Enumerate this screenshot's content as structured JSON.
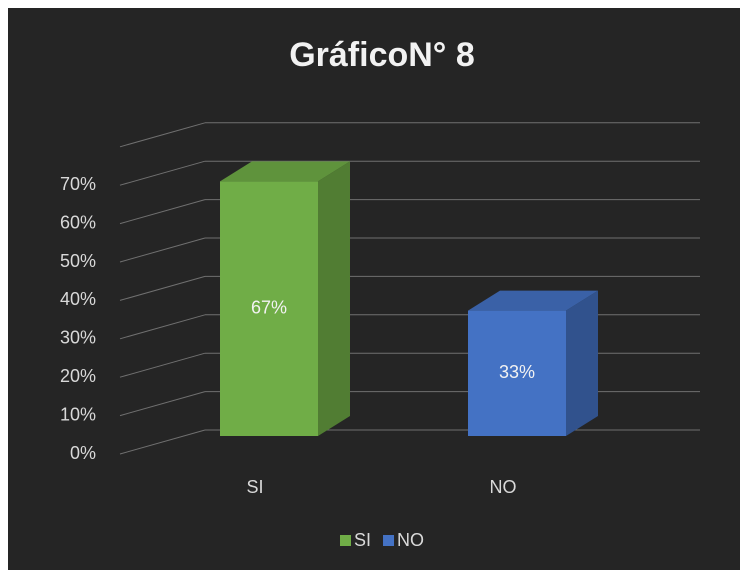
{
  "chart_data": {
    "type": "bar3d",
    "title": "GráficoN° 8",
    "categories": [
      "SI",
      "NO"
    ],
    "values": [
      67,
      33
    ],
    "value_labels": [
      "67%",
      "33%"
    ],
    "colors": [
      "#70ad47",
      "#4472c4"
    ],
    "ylim": [
      0,
      80
    ],
    "yticks": [
      {
        "value": 0,
        "label": "0%"
      },
      {
        "value": 10,
        "label": "10%"
      },
      {
        "value": 20,
        "label": "20%"
      },
      {
        "value": 30,
        "label": "30%"
      },
      {
        "value": 40,
        "label": "40%"
      },
      {
        "value": 50,
        "label": "50%"
      },
      {
        "value": 60,
        "label": "60%"
      },
      {
        "value": 70,
        "label": "70%"
      }
    ],
    "grid": true,
    "legend": "bottom"
  }
}
